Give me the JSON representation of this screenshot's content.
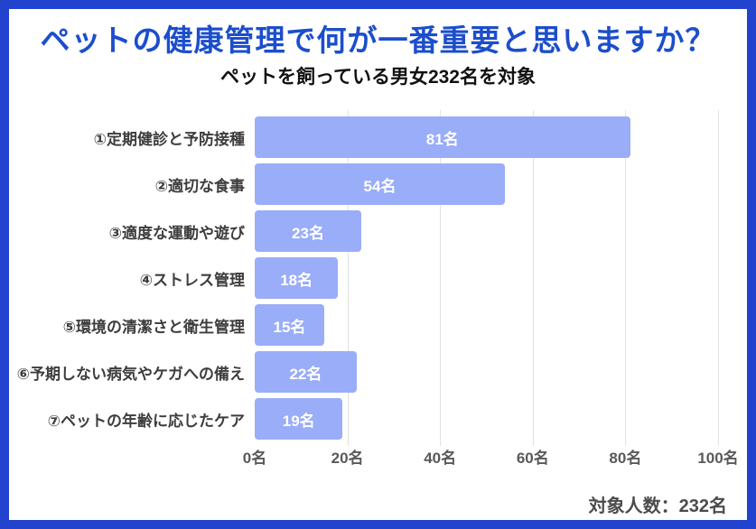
{
  "header": {
    "title": "ペットの健康管理で何が一番重要と思いますか？",
    "subtitle": "ペットを飼っている男女232名を対象"
  },
  "footer": {
    "label": "対象人数：232名"
  },
  "colors": {
    "frame_border": "#2243ce",
    "title_text": "#1c4ecc",
    "bar_fill": "#9aadf8",
    "bar_value_text": "#ffffff",
    "gridline": "#e2e2e2"
  },
  "chart_data": {
    "type": "bar",
    "orientation": "horizontal",
    "title": "ペットの健康管理で何が一番重要と思いますか？",
    "subtitle": "ペットを飼っている男女232名を対象",
    "categories": [
      "①定期健診と予防接種",
      "②適切な食事",
      "③適度な運動や遊び",
      "④ストレス管理",
      "⑤環境の清潔さと衛生管理",
      "⑥予期しない病気やケガへの備え",
      "⑦ペットの年齢に応じたケア"
    ],
    "values": [
      81,
      54,
      23,
      18,
      15,
      22,
      19
    ],
    "value_labels": [
      "81名",
      "54名",
      "23名",
      "18名",
      "15名",
      "22名",
      "19名"
    ],
    "xlim": [
      0,
      100
    ],
    "x_tick_values": [
      0,
      20,
      40,
      60,
      80,
      100
    ],
    "x_tick_labels": [
      "0名",
      "20名",
      "40名",
      "60名",
      "80名",
      "100名"
    ],
    "grid": true,
    "legend": false
  }
}
